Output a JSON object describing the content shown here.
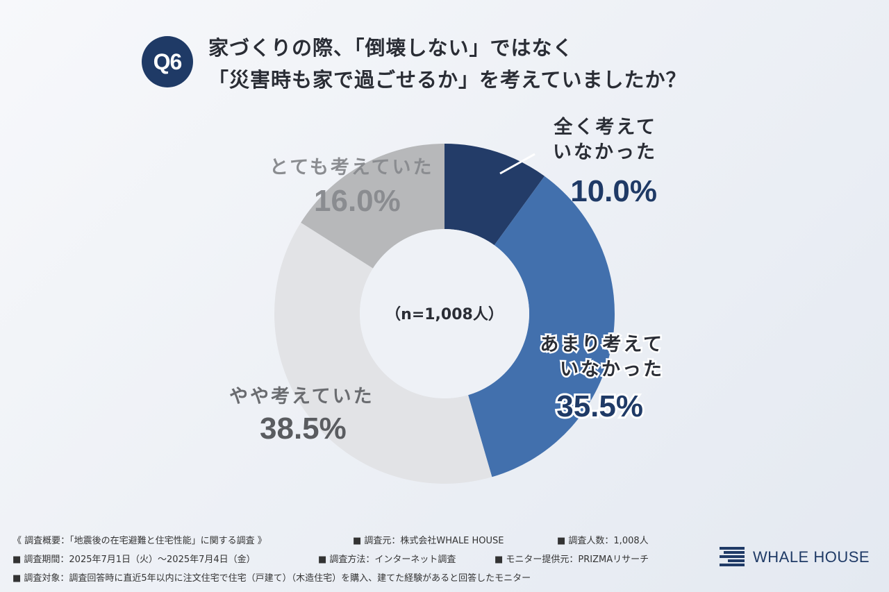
{
  "question": {
    "badge": "Q6",
    "line1": "家づくりの際、「倒壊しない」ではなく",
    "line2": "「災害時も家で過ごせるか」を考えていましたか？"
  },
  "chart_data": {
    "type": "pie",
    "center_label": "（n=1,008人）",
    "slices": [
      {
        "label_lines": [
          "全く考えて",
          "いなかった"
        ],
        "value": 10.0,
        "value_text": "10.0%",
        "color": "#233c68"
      },
      {
        "label_lines": [
          "あまり考えて",
          "いなかった"
        ],
        "value": 35.5,
        "value_text": "35.5%",
        "color": "#4270ad"
      },
      {
        "label_lines": [
          "やや考えていた"
        ],
        "value": 38.5,
        "value_text": "38.5%",
        "color": "#e2e3e6"
      },
      {
        "label_lines": [
          "とても考えていた"
        ],
        "value": 16.0,
        "value_text": "16.0%",
        "color": "#b7b8ba"
      }
    ]
  },
  "footer": {
    "row1": [
      "《 調査概要：「地震後の在宅避難と住宅性能」に関する調査 》",
      "■ 調査元：株式会社WHALE HOUSE",
      "■ 調査人数：1,008人"
    ],
    "row2": [
      "■ 調査期間：2025年7月1日（火）～2025年7月4日（金）",
      "■ 調査方法：インターネット調査",
      "■ モニター提供元：PRIZMAリサーチ"
    ],
    "row3": [
      "■ 調査対象：調査回答時に直近5年以内に注文住宅で住宅（戸建て）（木造住宅）を購入、建てた経験があると回答したモニター"
    ]
  },
  "logo": {
    "text": "WHALE HOUSE",
    "icon": "whale-house-stripes-icon"
  }
}
